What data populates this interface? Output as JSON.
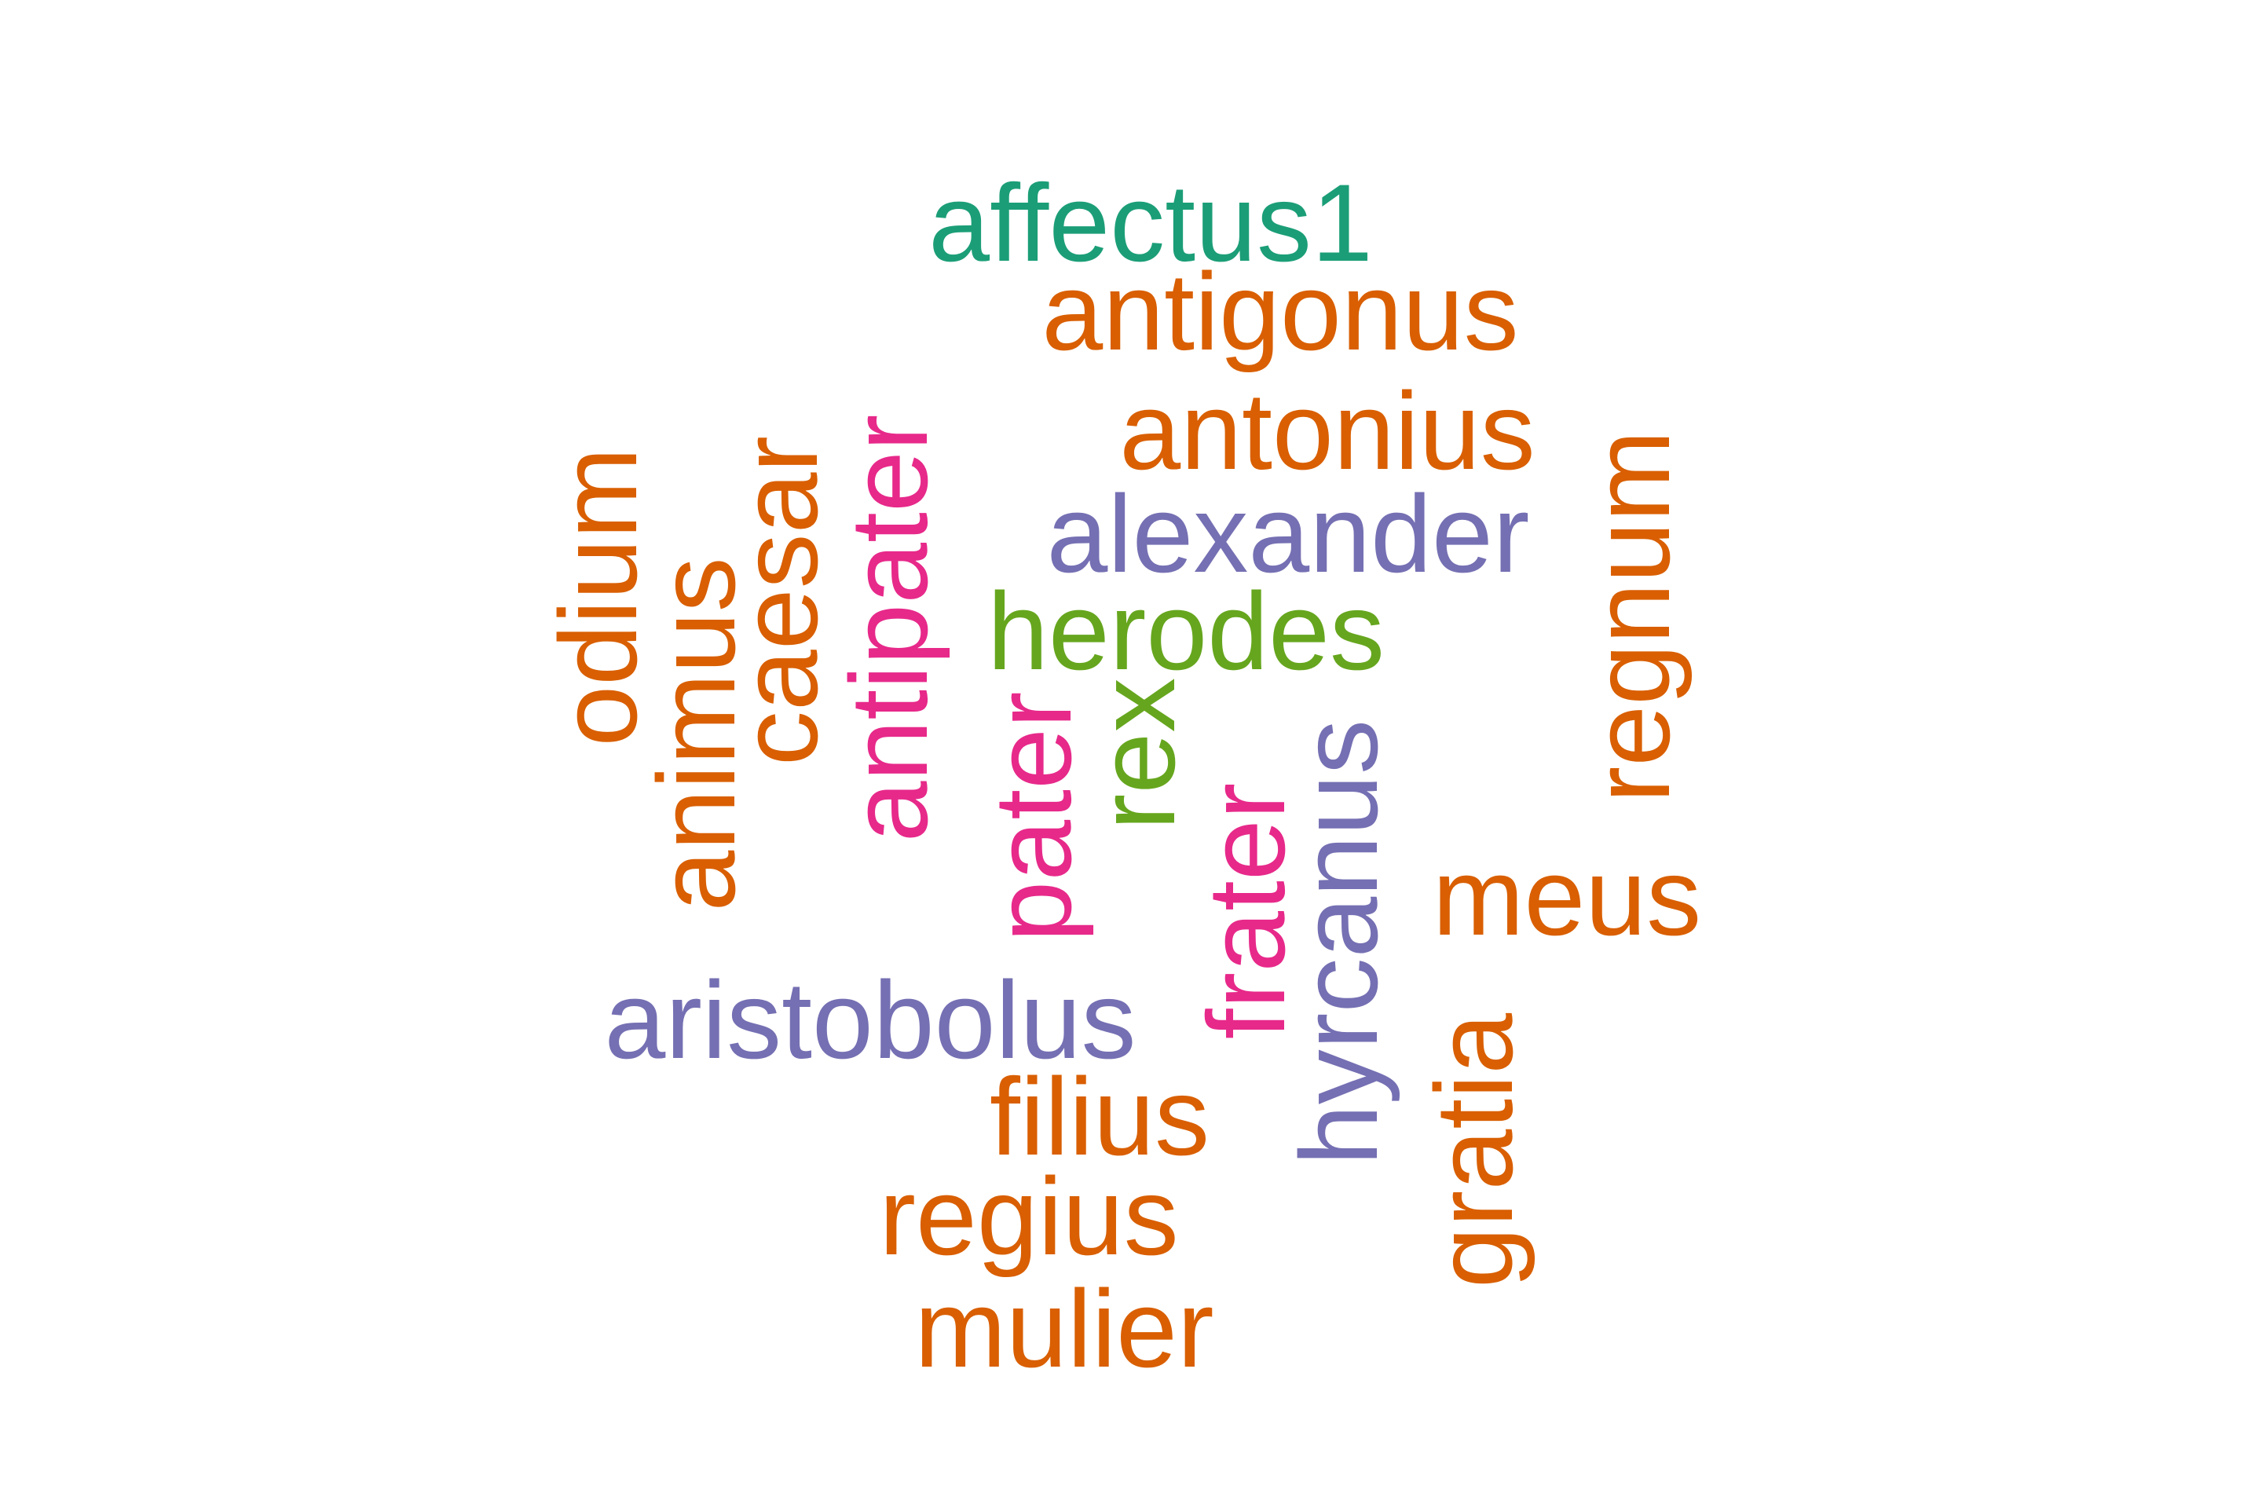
{
  "word_cloud": {
    "words": [
      {
        "text": "affectus1",
        "color": "#1b9e77",
        "orientation": "horizontal"
      },
      {
        "text": "antigonus",
        "color": "#d95f02",
        "orientation": "horizontal"
      },
      {
        "text": "antonius",
        "color": "#d95f02",
        "orientation": "horizontal"
      },
      {
        "text": "alexander",
        "color": "#7570b3",
        "orientation": "horizontal"
      },
      {
        "text": "herodes",
        "color": "#66a61e",
        "orientation": "horizontal"
      },
      {
        "text": "meus",
        "color": "#d95f02",
        "orientation": "horizontal"
      },
      {
        "text": "aristobolus",
        "color": "#7570b3",
        "orientation": "horizontal"
      },
      {
        "text": "filius",
        "color": "#d95f02",
        "orientation": "horizontal"
      },
      {
        "text": "regius",
        "color": "#d95f02",
        "orientation": "horizontal"
      },
      {
        "text": "mulier",
        "color": "#d95f02",
        "orientation": "horizontal"
      },
      {
        "text": "odium",
        "color": "#d95f02",
        "orientation": "vertical"
      },
      {
        "text": "animus",
        "color": "#d95f02",
        "orientation": "vertical"
      },
      {
        "text": "caesar",
        "color": "#d95f02",
        "orientation": "vertical"
      },
      {
        "text": "antipater",
        "color": "#e7298a",
        "orientation": "vertical"
      },
      {
        "text": "pater",
        "color": "#e7298a",
        "orientation": "vertical"
      },
      {
        "text": "rex",
        "color": "#66a61e",
        "orientation": "vertical"
      },
      {
        "text": "frater",
        "color": "#e7298a",
        "orientation": "vertical"
      },
      {
        "text": "hyrcanus",
        "color": "#7570b3",
        "orientation": "vertical"
      },
      {
        "text": "regnum",
        "color": "#d95f02",
        "orientation": "vertical"
      },
      {
        "text": "gratia",
        "color": "#d95f02",
        "orientation": "vertical"
      }
    ]
  }
}
